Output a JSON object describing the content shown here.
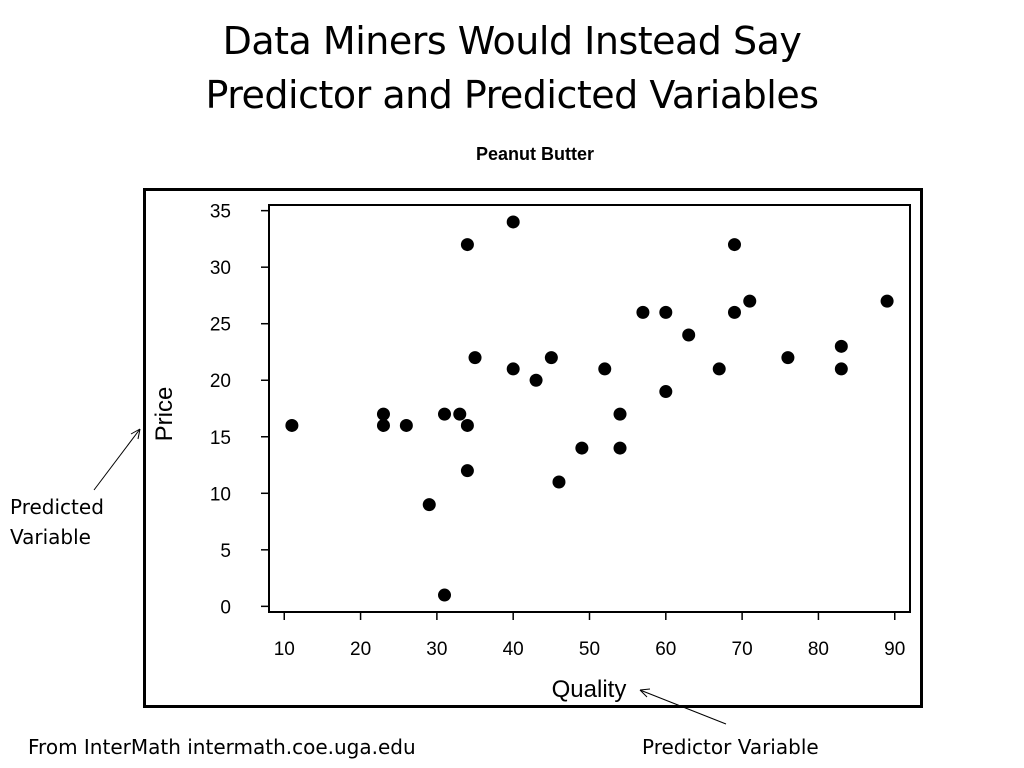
{
  "slide": {
    "title_line1": "Data Miners Would Instead Say",
    "title_line2": "Predictor and Predicted Variables",
    "annotation_predicted_line1": "Predicted",
    "annotation_predicted_line2": "Variable",
    "annotation_predictor": "Predictor Variable",
    "source": "From InterMath intermath.coe.uga.edu"
  },
  "chart_data": {
    "type": "scatter",
    "title": "Peanut Butter",
    "xlabel": "Quality",
    "ylabel": "Price",
    "xlim": [
      8,
      92
    ],
    "ylim": [
      -0.5,
      35.5
    ],
    "xticks": [
      10,
      20,
      30,
      40,
      50,
      60,
      70,
      80,
      90
    ],
    "yticks": [
      0,
      5,
      10,
      15,
      20,
      25,
      30,
      35
    ],
    "grid": false,
    "points": [
      {
        "x": 11,
        "y": 16
      },
      {
        "x": 23,
        "y": 17
      },
      {
        "x": 23,
        "y": 16
      },
      {
        "x": 26,
        "y": 16
      },
      {
        "x": 29,
        "y": 9
      },
      {
        "x": 31,
        "y": 17
      },
      {
        "x": 31,
        "y": 1
      },
      {
        "x": 33,
        "y": 17
      },
      {
        "x": 34,
        "y": 16
      },
      {
        "x": 34,
        "y": 12
      },
      {
        "x": 34,
        "y": 32
      },
      {
        "x": 35,
        "y": 22
      },
      {
        "x": 40,
        "y": 34
      },
      {
        "x": 40,
        "y": 21
      },
      {
        "x": 43,
        "y": 20
      },
      {
        "x": 45,
        "y": 22
      },
      {
        "x": 46,
        "y": 11
      },
      {
        "x": 49,
        "y": 14
      },
      {
        "x": 52,
        "y": 21
      },
      {
        "x": 54,
        "y": 17
      },
      {
        "x": 54,
        "y": 14
      },
      {
        "x": 57,
        "y": 26
      },
      {
        "x": 60,
        "y": 26
      },
      {
        "x": 60,
        "y": 19
      },
      {
        "x": 63,
        "y": 24
      },
      {
        "x": 67,
        "y": 21
      },
      {
        "x": 69,
        "y": 32
      },
      {
        "x": 69,
        "y": 26
      },
      {
        "x": 71,
        "y": 27
      },
      {
        "x": 76,
        "y": 22
      },
      {
        "x": 83,
        "y": 23
      },
      {
        "x": 83,
        "y": 21
      },
      {
        "x": 89,
        "y": 27
      }
    ]
  }
}
